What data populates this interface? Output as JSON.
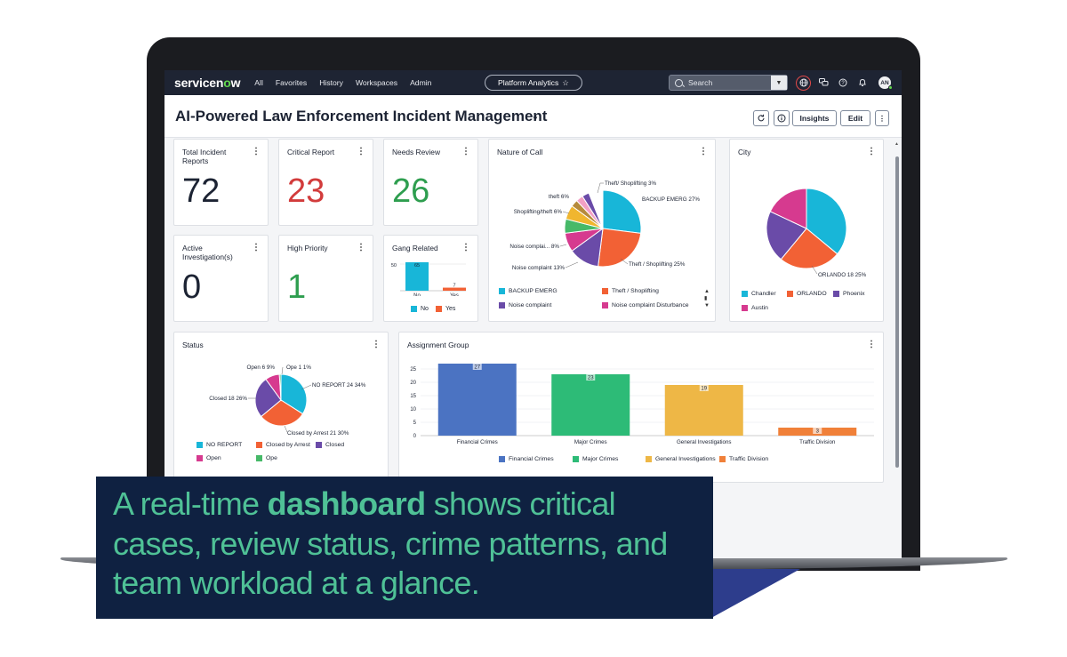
{
  "nav": {
    "logo_a": "servicen",
    "logo_o": "o",
    "logo_b": "w",
    "items": [
      "All",
      "Favorites",
      "History",
      "Workspaces",
      "Admin"
    ],
    "context": "Platform Analytics",
    "search_placeholder": "Search",
    "avatar_initials": "AN"
  },
  "page": {
    "title": "AI-Powered Law Enforcement Incident Management",
    "insights_label": "Insights",
    "edit_label": "Edit"
  },
  "kpis": [
    {
      "label": "Total Incident Reports",
      "value": "72",
      "color": "#1c2333"
    },
    {
      "label": "Critical Report",
      "value": "23",
      "color": "#d23b3b"
    },
    {
      "label": "Needs Review",
      "value": "26",
      "color": "#2e9e4f"
    },
    {
      "label": "Active Investigation(s)",
      "value": "0",
      "color": "#1c2333"
    },
    {
      "label": "High Priority",
      "value": "1",
      "color": "#2e9e4f"
    }
  ],
  "colors": {
    "cyan": "#18b6d8",
    "orange": "#f26135",
    "purple": "#6a4ba8",
    "pink": "#d63a8f",
    "green": "#46b968",
    "yellow": "#f0b62f",
    "brown": "#b58a3c",
    "lightpink": "#f2a0c4",
    "blue": "#4b73c2",
    "emerald": "#2dbb77",
    "gold": "#eeb746",
    "coral": "#f08039"
  },
  "chart_data": [
    {
      "type": "bar",
      "title": "Gang Related",
      "categories": [
        "No",
        "Yes"
      ],
      "values": [
        65,
        7
      ],
      "ytick_label": "50",
      "legend": [
        "No",
        "Yes"
      ]
    },
    {
      "type": "pie",
      "title": "Nature of Call",
      "slices": [
        {
          "name": "BACKUP EMERG",
          "percent": 27,
          "color": "cyan"
        },
        {
          "name": "Theft / Shoplifting",
          "percent": 25,
          "color": "orange"
        },
        {
          "name": "Noise complaint",
          "percent": 13,
          "color": "purple"
        },
        {
          "name": "Noise complai...",
          "percent": 8,
          "color": "pink"
        },
        {
          "name": "Shoplifting/theft",
          "percent": 6,
          "color": "green"
        },
        {
          "name": "theft",
          "percent": 6,
          "color": "yellow"
        },
        {
          "name": "",
          "percent": 3,
          "color": "brown"
        },
        {
          "name": "",
          "percent": 3,
          "color": "lightpink"
        },
        {
          "name": "Theft/ Shoplifting",
          "percent": 3,
          "color": "purple"
        }
      ],
      "labels": [
        {
          "text": "Theft/ Shoplifting",
          "pct": "3%"
        },
        {
          "text": "BACKUP EMERG",
          "pct": "27%"
        },
        {
          "text": "theft",
          "pct": "6%"
        },
        {
          "text": "Shoplifting/theft",
          "pct": "6%"
        },
        {
          "text": "Noise complai...",
          "pct": "8%"
        },
        {
          "text": "Noise complaint",
          "pct": "13%"
        },
        {
          "text": "Theft / Shoplifting",
          "pct": "25%"
        }
      ],
      "legend": [
        "BACKUP EMERG",
        "Theft / Shoplifting",
        "Noise complaint",
        "Noise complaint Disturbance"
      ]
    },
    {
      "type": "pie",
      "title": "City",
      "slices": [
        {
          "name": "Chandler",
          "percent": 36,
          "color": "cyan"
        },
        {
          "name": "ORLANDO",
          "percent": 25,
          "color": "orange"
        },
        {
          "name": "Phoenix",
          "percent": 21,
          "color": "purple"
        },
        {
          "name": "Austin",
          "percent": 18,
          "color": "pink"
        }
      ],
      "callout": {
        "name": "ORLANDO",
        "count": "18",
        "pct": "25%"
      },
      "legend": [
        "Chandler",
        "ORLANDO",
        "Phoenix",
        "Austin"
      ]
    },
    {
      "type": "pie",
      "title": "Status",
      "slices": [
        {
          "name": "NO REPORT",
          "percent": 34,
          "color": "cyan"
        },
        {
          "name": "Closed by Arrest",
          "percent": 30,
          "color": "orange"
        },
        {
          "name": "Closed",
          "percent": 26,
          "color": "purple"
        },
        {
          "name": "Open",
          "percent": 9,
          "color": "pink"
        },
        {
          "name": "Ope",
          "percent": 1,
          "color": "green"
        }
      ],
      "labels": [
        {
          "text": "Open",
          "count": "6",
          "pct": "9%"
        },
        {
          "text": "Ope",
          "count": "1",
          "pct": "1%"
        },
        {
          "text": "NO REPORT",
          "count": "24",
          "pct": "34%"
        },
        {
          "text": "Closed",
          "count": "18",
          "pct": "26%"
        },
        {
          "text": "Closed by Arrest",
          "count": "21",
          "pct": "30%"
        }
      ],
      "legend": [
        "NO REPORT",
        "Closed by Arrest",
        "Closed",
        "Open",
        "Ope"
      ]
    },
    {
      "type": "bar",
      "title": "Assignment Group",
      "categories": [
        "Financial Crimes",
        "Major Crimes",
        "General Investigations",
        "Traffic Division"
      ],
      "values": [
        27,
        23,
        19,
        3
      ],
      "colors": [
        "blue",
        "emerald",
        "gold",
        "coral"
      ],
      "yticks": [
        0,
        5,
        10,
        15,
        20,
        25
      ],
      "ylim": [
        0,
        28
      ],
      "legend": [
        "Financial Crimes",
        "Major Crimes",
        "General Investigations",
        "Traffic Division"
      ]
    }
  ],
  "caption": {
    "part1": "A real-time ",
    "bold": "dashboard",
    "part2": " shows critical cases, review status, crime patterns, and team workload at a glance."
  }
}
